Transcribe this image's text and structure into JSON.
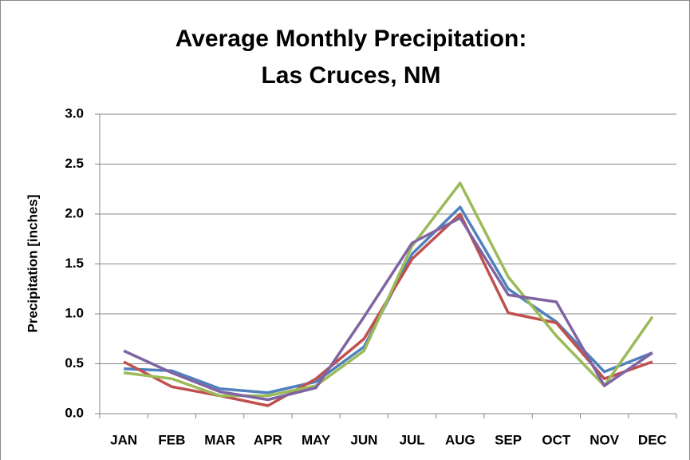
{
  "chart_data": {
    "type": "line",
    "title": [
      "Average Monthly Precipitation:",
      "Las Cruces, NM"
    ],
    "y_label": "Precipitation [inches]",
    "categories": [
      "JAN",
      "FEB",
      "MAR",
      "APR",
      "MAY",
      "JUN",
      "JUL",
      "AUG",
      "SEP",
      "OCT",
      "NOV",
      "DEC"
    ],
    "series": [
      {
        "color": "#4f81bd",
        "values": [
          0.45,
          0.43,
          0.25,
          0.21,
          0.32,
          0.67,
          1.6,
          2.07,
          1.25,
          0.92,
          0.42,
          0.61
        ]
      },
      {
        "color": "#c0504d",
        "values": [
          0.52,
          0.27,
          0.18,
          0.08,
          0.35,
          0.75,
          1.55,
          2.0,
          1.01,
          0.91,
          0.35,
          0.52
        ]
      },
      {
        "color": "#9bbb59",
        "values": [
          0.41,
          0.35,
          0.18,
          0.18,
          0.28,
          0.63,
          1.68,
          2.31,
          1.37,
          0.78,
          0.28,
          0.97
        ]
      },
      {
        "color": "#8064a2",
        "values": [
          0.63,
          0.41,
          0.22,
          0.14,
          0.26,
          0.97,
          1.71,
          1.96,
          1.19,
          1.12,
          0.28,
          0.61
        ]
      }
    ],
    "ylim": [
      0,
      3
    ],
    "yticks": [
      {
        "value": 0,
        "label": "0.0"
      },
      0.5,
      {
        "value": 1,
        "label": "1.0"
      },
      1.5,
      {
        "value": 2,
        "label": "2.0"
      },
      2.5,
      {
        "value": 3,
        "label": "3.0"
      }
    ],
    "grid": true
  }
}
